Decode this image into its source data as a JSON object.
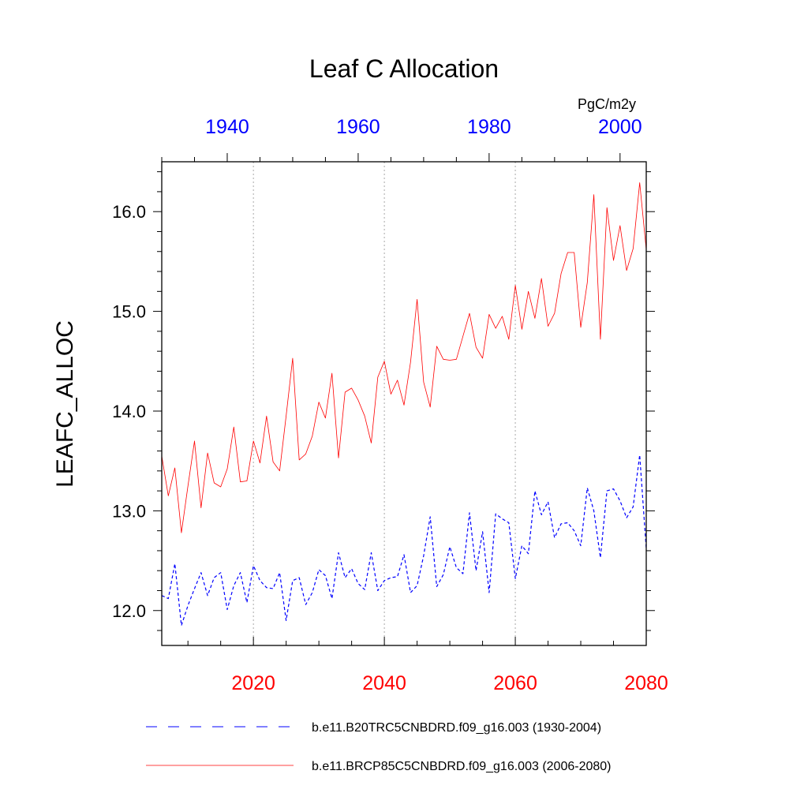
{
  "chart_data": {
    "type": "line",
    "title": "Leaf C Allocation",
    "ylabel": "LEAFC_ALLOC",
    "units": "PgC/m2y",
    "ylim": [
      11.65,
      16.5
    ],
    "yticks": [
      12.0,
      13.0,
      14.0,
      15.0,
      16.0
    ],
    "ytick_labels": [
      "12.0",
      "13.0",
      "14.0",
      "15.0",
      "16.0"
    ],
    "grid_x": [
      2020,
      2040,
      2060
    ],
    "x_bottom": {
      "range": [
        2006,
        2080
      ],
      "ticks": [
        2020,
        2040,
        2060,
        2080
      ],
      "tick_labels": [
        "2020",
        "2040",
        "2060",
        "2080"
      ],
      "color": "#ff0000"
    },
    "x_top": {
      "range": [
        1930,
        2004
      ],
      "ticks": [
        1940,
        1960,
        1980,
        2000
      ],
      "tick_labels": [
        "1940",
        "1960",
        "1980",
        "2000"
      ],
      "color": "#0000ff"
    },
    "series": [
      {
        "name": "b.e11.B20TRC5CNBDRD.f09_g16.003 (1930-2004)",
        "color": "#0000ff",
        "dash": "dashed",
        "axis": "top",
        "x_start": 1930,
        "values": [
          12.15,
          12.12,
          12.47,
          11.85,
          12.05,
          12.22,
          12.38,
          12.15,
          12.33,
          12.38,
          12.01,
          12.25,
          12.38,
          12.08,
          12.45,
          12.3,
          12.23,
          12.22,
          12.38,
          11.9,
          12.3,
          12.33,
          12.06,
          12.18,
          12.41,
          12.35,
          12.12,
          12.58,
          12.33,
          12.42,
          12.27,
          12.21,
          12.58,
          12.2,
          12.3,
          12.33,
          12.34,
          12.56,
          12.18,
          12.25,
          12.55,
          12.94,
          12.24,
          12.36,
          12.64,
          12.43,
          12.37,
          12.98,
          12.4,
          12.79,
          12.18,
          12.97,
          12.92,
          12.88,
          12.32,
          12.65,
          12.57,
          13.2,
          12.96,
          13.09,
          12.73,
          12.87,
          12.88,
          12.8,
          12.65,
          13.23,
          13.0,
          12.53,
          13.2,
          13.22,
          13.1,
          12.93,
          13.04,
          13.56,
          12.62
        ]
      },
      {
        "name": "b.e11.BRCP85C5CNBDRD.f09_g16.003 (2006-2080)",
        "color": "#ff0000",
        "dash": "solid",
        "axis": "bottom",
        "x_start": 2006,
        "values": [
          13.55,
          13.15,
          13.43,
          12.78,
          13.25,
          13.7,
          13.03,
          13.58,
          13.28,
          13.24,
          13.42,
          13.84,
          13.29,
          13.3,
          13.7,
          13.48,
          13.95,
          13.49,
          13.4,
          13.95,
          14.53,
          13.51,
          13.57,
          13.75,
          14.09,
          13.93,
          14.38,
          13.53,
          14.19,
          14.23,
          14.11,
          13.95,
          13.68,
          14.34,
          14.5,
          14.17,
          14.31,
          14.06,
          14.49,
          15.12,
          14.29,
          14.04,
          14.65,
          14.52,
          14.51,
          14.52,
          14.75,
          14.98,
          14.64,
          14.53,
          14.97,
          14.83,
          14.95,
          14.72,
          15.26,
          14.82,
          15.2,
          14.93,
          15.33,
          14.85,
          14.98,
          15.38,
          15.59,
          15.59,
          14.84,
          15.29,
          16.17,
          14.72,
          16.04,
          15.51,
          15.86,
          15.41,
          15.63,
          16.29,
          15.62
        ]
      }
    ]
  }
}
